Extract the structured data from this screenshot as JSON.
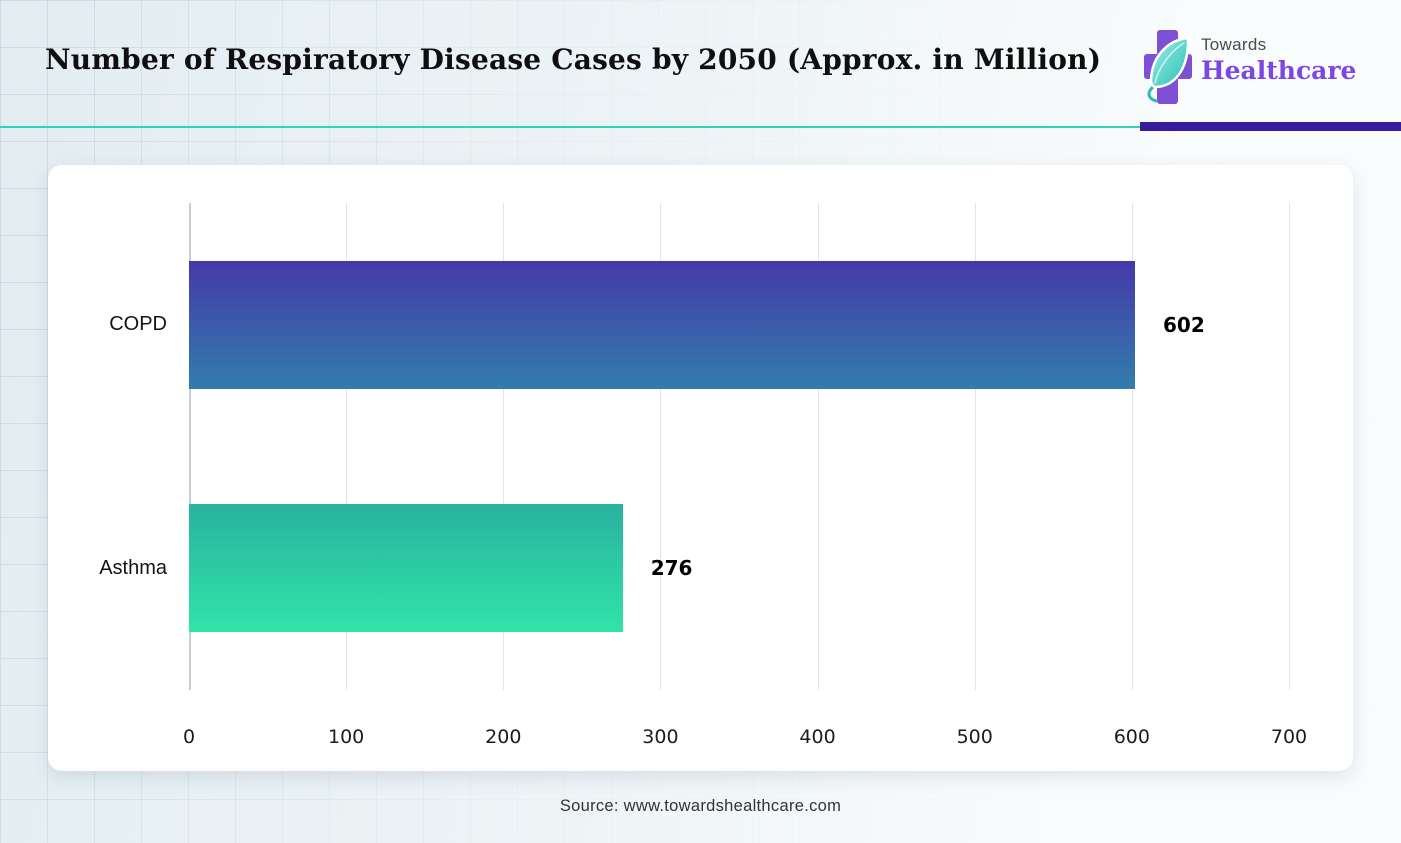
{
  "header": {
    "title": "Number of Respiratory Disease Cases by 2050 (Approx. in Million)",
    "logo": {
      "top": "Towards",
      "bottom": "Healthcare"
    }
  },
  "chart_data": {
    "type": "bar",
    "orientation": "horizontal",
    "title": "Number of Respiratory Disease Cases by 2050 (Approx. in Million)",
    "categories": [
      "COPD",
      "Asthma"
    ],
    "values": [
      602,
      276
    ],
    "value_labels": [
      "602",
      "276"
    ],
    "xlabel": "",
    "ylabel": "",
    "xlim": [
      0,
      700
    ],
    "x_ticks": [
      0,
      100,
      200,
      300,
      400,
      500,
      600,
      700
    ],
    "grid": true,
    "legend": "none",
    "bar_colors": [
      {
        "category": "COPD",
        "top": "#4539a9",
        "bottom": "#327dac"
      },
      {
        "category": "Asthma",
        "top": "#29b2a0",
        "bottom": "#30e4a9"
      }
    ]
  },
  "footer": {
    "source": "Source: www.towardshealthcare.com"
  },
  "colors": {
    "divider_teal": "#2fd4b7",
    "divider_purple": "#391c9c",
    "logo_purple": "#7e50d5",
    "logo_leaf_light": "#9feee8",
    "logo_leaf_dark": "#28bfb4",
    "card_background": "#ffffff",
    "gridline": "#e2e5e7"
  }
}
